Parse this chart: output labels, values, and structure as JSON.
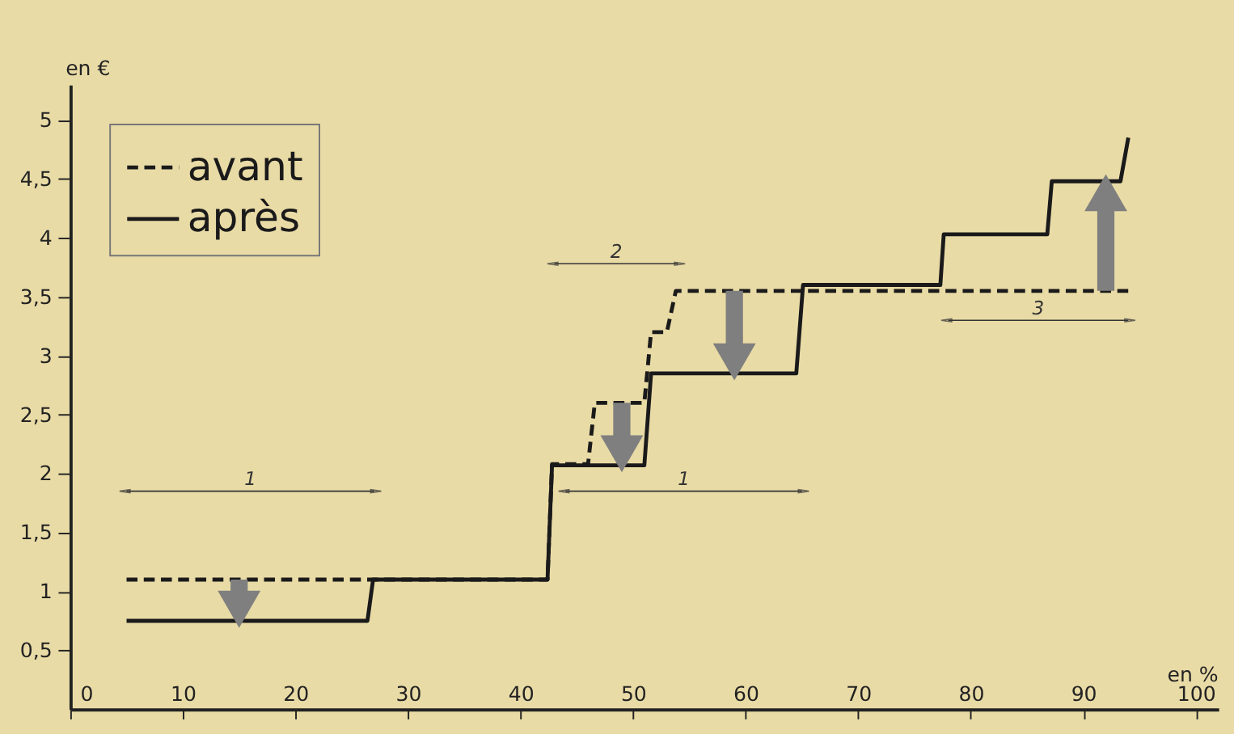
{
  "chart_data": {
    "type": "line",
    "xlabel": "en %",
    "ylabel": "en €",
    "series": [
      {
        "name": "avant",
        "color": "#1a1a1a",
        "line_style": "dashed",
        "x": [
          5,
          42.4,
          42.8,
          46,
          46.6,
          51,
          51.6,
          53,
          53.8,
          94
        ],
        "values": [
          1.1,
          1.1,
          2.08,
          2.08,
          2.6,
          2.6,
          3.2,
          3.2,
          3.55,
          3.55
        ]
      },
      {
        "name": "après",
        "color": "#1a1a1a",
        "line_style": "solid",
        "x": [
          5,
          26.4,
          26.9,
          42.4,
          42.8,
          51,
          51.6,
          64.5,
          65.1,
          77.3,
          77.6,
          86.8,
          87.2,
          93.3,
          94
        ],
        "values": [
          0.75,
          0.75,
          1.1,
          1.1,
          2.07,
          2.07,
          2.85,
          2.85,
          3.6,
          3.6,
          4.03,
          4.03,
          4.48,
          4.48,
          4.85
        ]
      }
    ],
    "annotations": [
      "1",
      "2",
      "1",
      "3"
    ],
    "xlim": [
      0,
      102
    ],
    "ylim": [
      0,
      5.3
    ],
    "xticks": [
      0,
      10,
      20,
      30,
      40,
      50,
      60,
      70,
      80,
      90,
      100
    ],
    "yticks": [
      {
        "value": 0.5,
        "label": "0,5"
      },
      1,
      {
        "value": 1.5,
        "label": "1,5"
      },
      2,
      {
        "value": 2.5,
        "label": "2,5"
      },
      3,
      {
        "value": 3.5,
        "label": "3,5"
      },
      4,
      {
        "value": 4.5,
        "label": "4,5"
      },
      5
    ],
    "grid": false,
    "legend": "top left",
    "marker": "none"
  }
}
